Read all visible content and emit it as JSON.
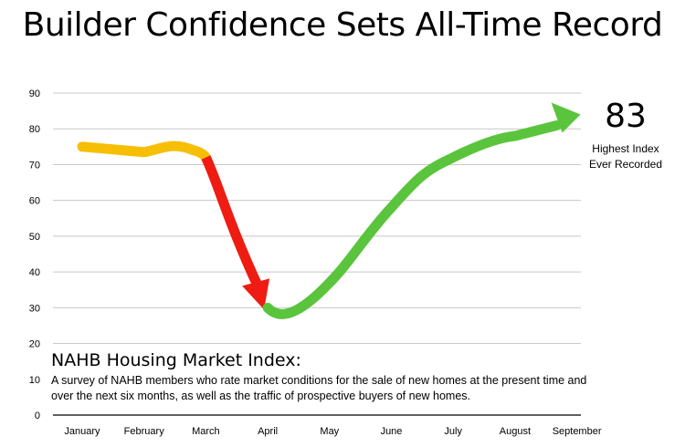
{
  "chart_data": {
    "type": "line",
    "title": "Builder Confidence Sets All-Time Record",
    "categories": [
      "January",
      "February",
      "March",
      "April",
      "May",
      "June",
      "July",
      "August",
      "September"
    ],
    "yticks": [
      0,
      10,
      20,
      30,
      40,
      50,
      60,
      70,
      80,
      90
    ],
    "ylim": [
      0,
      90
    ],
    "grid": true,
    "series": [
      {
        "values": [
          75,
          74,
          72,
          30,
          37,
          58,
          72,
          78,
          83
        ],
        "segment_colors": [
          "#f6bf06",
          "#f6bf06",
          "#ee1c12",
          "#5ac43c",
          "#5ac43c",
          "#5ac43c",
          "#5ac43c",
          "#5ac43c"
        ]
      }
    ],
    "annotations": {
      "value": "83",
      "line1": "Highest Index",
      "line2": "Ever Recorded"
    }
  },
  "description": {
    "title": "NAHB Housing Market Index:",
    "body": "A survey of NAHB members who rate market conditions for the sale of new homes at the present time and over the next six months, as well as the traffic of prospective buyers of new homes."
  },
  "colors": {
    "yellow": "#f6bf06",
    "red": "#ee1c12",
    "green": "#5ac43c",
    "grid": "#c8c8c8",
    "axis": "#000000"
  }
}
